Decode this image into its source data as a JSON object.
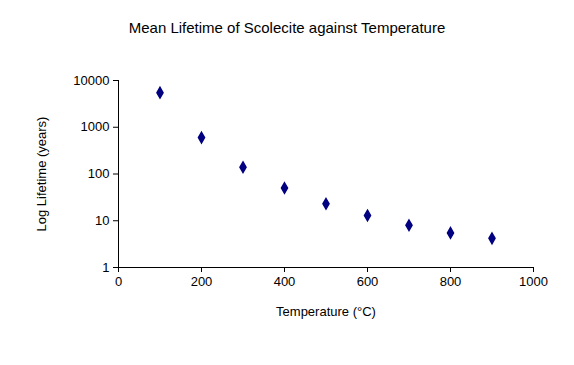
{
  "chart_data": {
    "type": "scatter",
    "title": "Mean Lifetime of Scolecite against Temperature",
    "x_label": "Temperature (°C)",
    "y_label": "Log Lifetime (years)",
    "x": [
      100,
      200,
      300,
      400,
      500,
      600,
      700,
      800,
      900
    ],
    "values": [
      5500,
      600,
      140,
      50,
      23,
      13,
      8,
      5.5,
      4.2
    ],
    "color": "#000080",
    "marker": "diamond",
    "log": "y",
    "grid": false,
    "xlim": [
      0,
      1000
    ],
    "xticks": [
      0,
      200,
      400,
      600,
      800,
      1000
    ],
    "ylim": [
      1,
      10000
    ],
    "yticks": [
      1,
      10,
      100,
      1000,
      10000
    ]
  }
}
